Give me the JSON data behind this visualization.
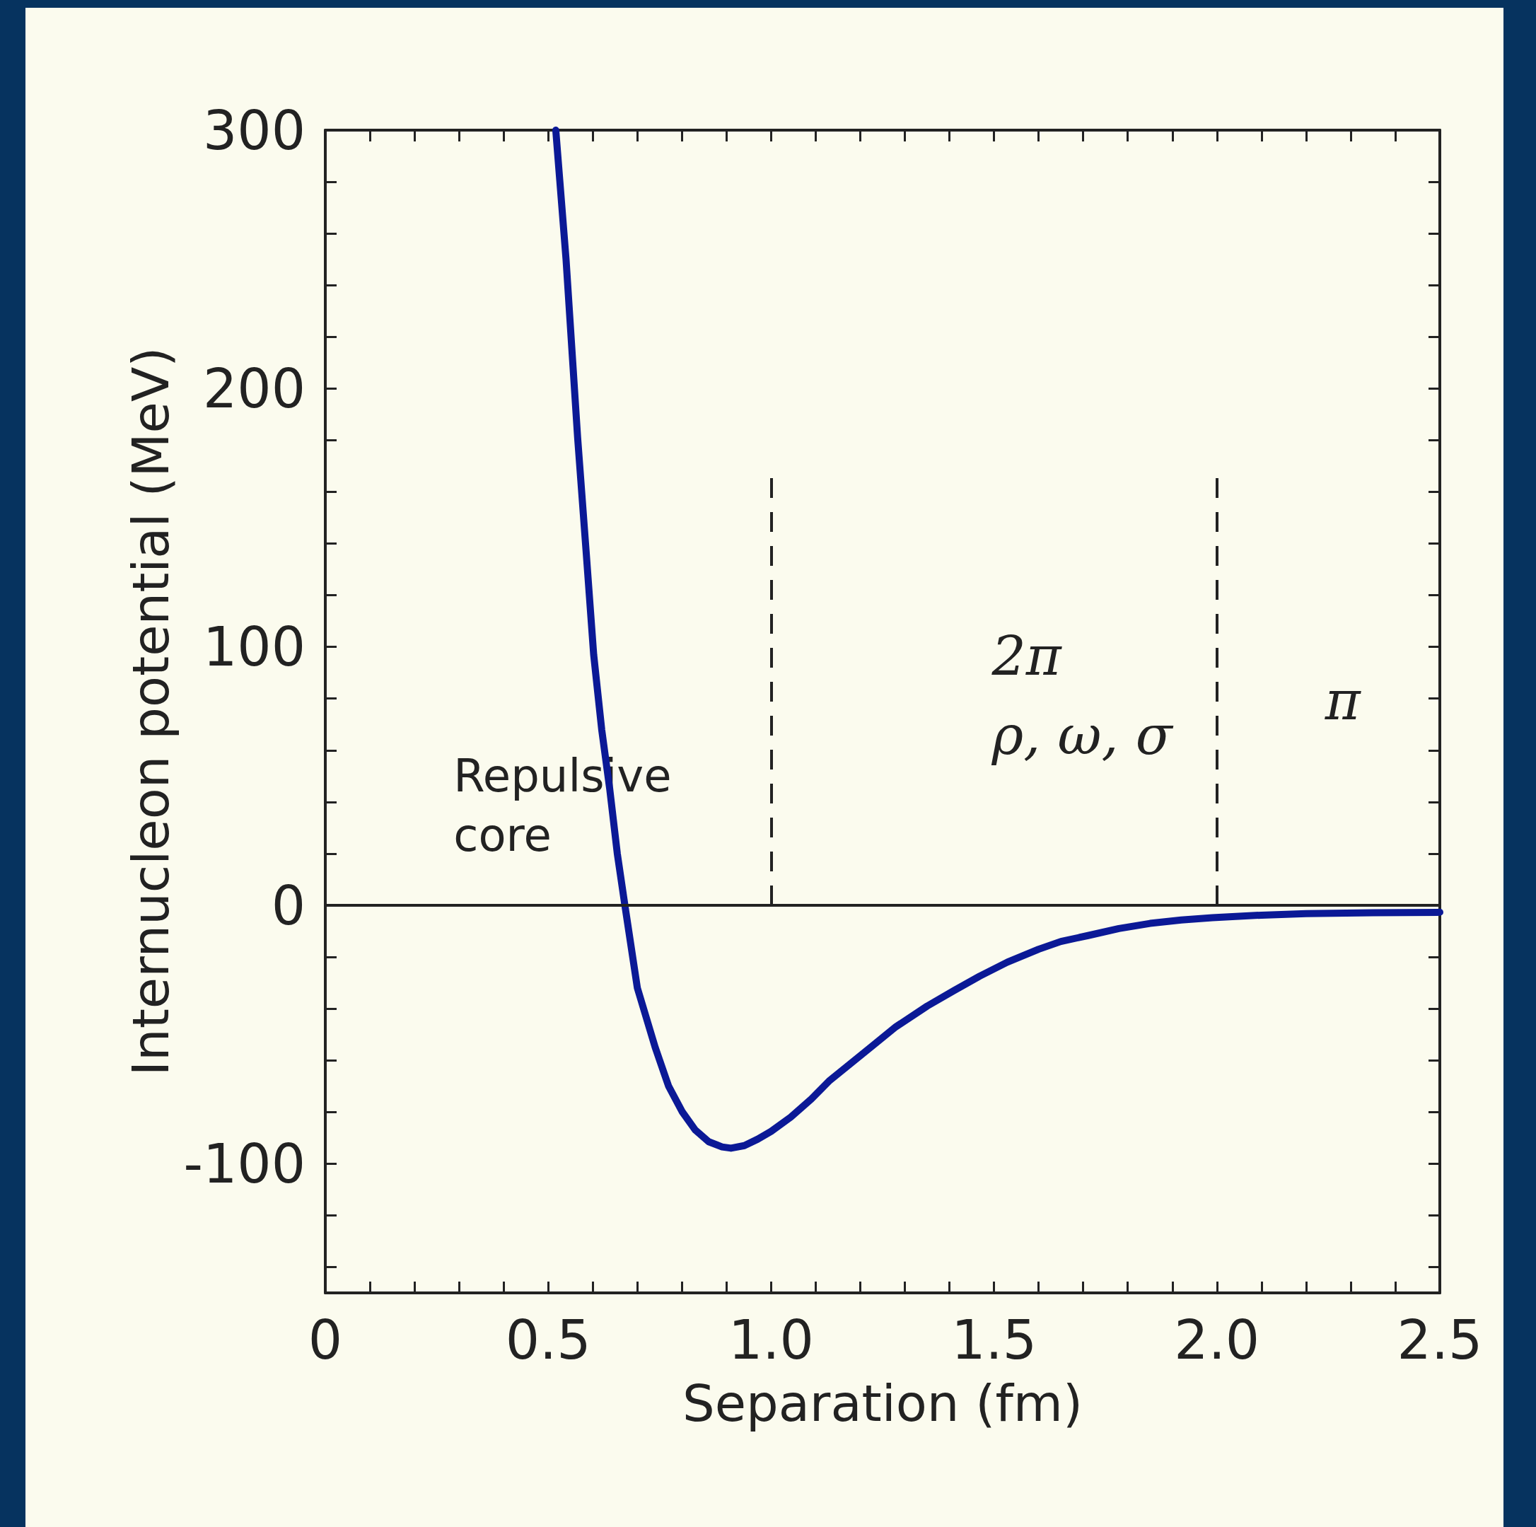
{
  "chart_data": {
    "type": "line",
    "xlabel": "Separation (fm)",
    "ylabel": "Internucleon potential (MeV)",
    "x": [
      0.517,
      0.54,
      0.566,
      0.585,
      0.602,
      0.62,
      0.638,
      0.655,
      0.672,
      0.7,
      0.74,
      0.77,
      0.801,
      0.83,
      0.86,
      0.89,
      0.91,
      0.94,
      0.97,
      1.0,
      1.044,
      1.09,
      1.13,
      1.18,
      1.226,
      1.28,
      1.35,
      1.41,
      1.468,
      1.53,
      1.6,
      1.65,
      1.711,
      1.78,
      1.85,
      1.92,
      1.99,
      2.1,
      2.2,
      2.35,
      2.5
    ],
    "series": [
      {
        "color": "#0b1996",
        "values": [
          300,
          250,
          181,
          137,
          97,
          68,
          45,
          20,
          0,
          -32,
          -55,
          -70,
          -80,
          -87,
          -91.5,
          -93.5,
          -94,
          -93,
          -90.5,
          -87.5,
          -82,
          -75,
          -68,
          -61,
          -54.6,
          -47,
          -39,
          -33,
          -27.4,
          -22,
          -17,
          -14,
          -11.7,
          -9,
          -7,
          -5.7,
          -4.8,
          -3.8,
          -3.2,
          -2.9,
          -2.7
        ]
      }
    ],
    "xlim": [
      0,
      2.5
    ],
    "ylim": [
      -150,
      300
    ],
    "xticks": [
      0,
      {
        "value": 0.1,
        "label": null
      },
      {
        "value": 0.2,
        "label": null
      },
      {
        "value": 0.3,
        "label": null
      },
      {
        "value": 0.4,
        "label": null
      },
      0.5,
      {
        "value": 0.6,
        "label": null
      },
      {
        "value": 0.7,
        "label": null
      },
      {
        "value": 0.8,
        "label": null
      },
      {
        "value": 0.9,
        "label": null
      },
      {
        "value": 1,
        "label": "1.0"
      },
      {
        "value": 1.1,
        "label": null
      },
      {
        "value": 1.2,
        "label": null
      },
      {
        "value": 1.3,
        "label": null
      },
      {
        "value": 1.4,
        "label": null
      },
      1.5,
      {
        "value": 1.6,
        "label": null
      },
      {
        "value": 1.7,
        "label": null
      },
      {
        "value": 1.8,
        "label": null
      },
      {
        "value": 1.9,
        "label": null
      },
      {
        "value": 2,
        "label": "2.0"
      },
      {
        "value": 2.1,
        "label": null
      },
      {
        "value": 2.2,
        "label": null
      },
      {
        "value": 2.3,
        "label": null
      },
      {
        "value": 2.4,
        "label": null
      },
      2.5
    ],
    "yticks": [
      {
        "value": -140,
        "label": null
      },
      {
        "value": -120,
        "label": null
      },
      -100,
      {
        "value": -80,
        "label": null
      },
      {
        "value": -60,
        "label": null
      },
      {
        "value": -40,
        "label": null
      },
      {
        "value": -20,
        "label": null
      },
      0,
      {
        "value": 20,
        "label": null
      },
      {
        "value": 40,
        "label": null
      },
      {
        "value": 60,
        "label": null
      },
      {
        "value": 80,
        "label": null
      },
      100,
      {
        "value": 120,
        "label": null
      },
      {
        "value": 140,
        "label": null
      },
      {
        "value": 160,
        "label": null
      },
      {
        "value": 180,
        "label": null
      },
      200,
      {
        "value": 220,
        "label": null
      },
      {
        "value": 240,
        "label": null
      },
      {
        "value": 260,
        "label": null
      },
      {
        "value": 280,
        "label": null
      },
      300
    ],
    "ref_lines": [
      {
        "axis": "y",
        "value": 0,
        "color": "#222222",
        "line_style": "solid"
      },
      {
        "axis": "x",
        "value": 1,
        "color": "#222222",
        "line_style": "dashed"
      },
      {
        "axis": "x",
        "value": 2,
        "color": "#222222",
        "line_style": "dashed"
      }
    ],
    "annotations": [
      "Repulsive\ncore",
      "2π",
      "ρ, ω, σ",
      "π"
    ],
    "marker": "none",
    "line_style": "solid",
    "grid": false
  }
}
